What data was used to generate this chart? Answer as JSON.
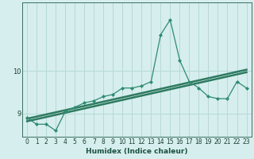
{
  "xlabel": "Humidex (Indice chaleur)",
  "x_values": [
    0,
    1,
    2,
    3,
    4,
    5,
    6,
    7,
    8,
    9,
    10,
    11,
    12,
    13,
    14,
    15,
    16,
    17,
    18,
    19,
    20,
    21,
    22,
    23
  ],
  "main_line_y": [
    8.9,
    8.75,
    8.75,
    8.6,
    9.05,
    9.15,
    9.25,
    9.3,
    9.4,
    9.45,
    9.6,
    9.6,
    9.65,
    9.75,
    10.85,
    11.2,
    10.25,
    9.75,
    9.6,
    9.4,
    9.35,
    9.35,
    9.75,
    9.6
  ],
  "trend1_y": [
    8.88,
    8.93,
    8.98,
    9.03,
    9.08,
    9.13,
    9.18,
    9.23,
    9.28,
    9.33,
    9.38,
    9.43,
    9.48,
    9.53,
    9.58,
    9.63,
    9.68,
    9.73,
    9.78,
    9.83,
    9.88,
    9.93,
    9.98,
    10.03
  ],
  "trend2_y": [
    8.82,
    8.87,
    8.92,
    8.97,
    9.02,
    9.07,
    9.12,
    9.17,
    9.22,
    9.27,
    9.32,
    9.37,
    9.42,
    9.47,
    9.52,
    9.57,
    9.62,
    9.67,
    9.72,
    9.77,
    9.82,
    9.87,
    9.92,
    9.97
  ],
  "main_color": "#2e8b70",
  "trend_color": "#2e7a60",
  "bg_color": "#d6eeee",
  "grid_color": "#b8d8d8",
  "yticks": [
    9,
    10
  ],
  "ylim": [
    8.45,
    11.6
  ],
  "xlim": [
    -0.5,
    23.5
  ],
  "xlabel_color": "#1a5040",
  "tick_color": "#1a4030",
  "xlabel_fontsize": 6.5,
  "tick_fontsize": 5.5
}
